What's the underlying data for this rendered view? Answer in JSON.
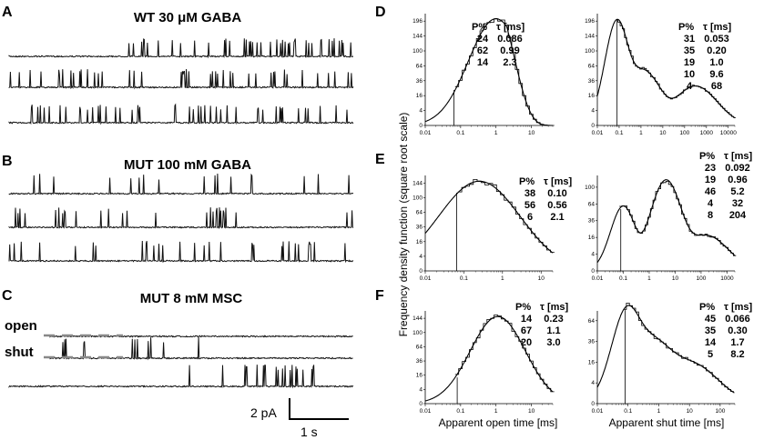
{
  "panels": {
    "A": {
      "label": "A",
      "title": "WT 30 μM GABA"
    },
    "B": {
      "label": "B",
      "title": "MUT 100 mM GABA"
    },
    "C": {
      "label": "C",
      "title": "MUT 8 mM MSC"
    },
    "D": {
      "label": "D"
    },
    "E": {
      "label": "E"
    },
    "F": {
      "label": "F"
    }
  },
  "trace_labels": {
    "open": "open",
    "shut": "shut"
  },
  "scale_bar": {
    "current": "2 pA",
    "time": "1 s"
  },
  "y_axis_label": "Frequency density function (square root scale)",
  "x_axis_labels": {
    "open": "Apparent open time [ms]",
    "shut": "Apparent shut time [ms]"
  },
  "table_headers": {
    "p": "P%",
    "tau": "τ [ms]"
  },
  "chart_data": [
    {
      "id": "D-open",
      "type": "histogram",
      "xlabel": "Apparent open time [ms]",
      "x_ticks": [
        "0.01",
        "0.1",
        "1",
        "10"
      ],
      "xlim": [
        0.01,
        40
      ],
      "y_ticks": [
        "0",
        "4",
        "16",
        "36",
        "64",
        "100",
        "144",
        "196"
      ],
      "ylim": [
        0,
        225
      ],
      "components": [
        {
          "p": "24",
          "tau": "0.086"
        },
        {
          "p": "62",
          "tau": "0.99"
        },
        {
          "p": "14",
          "tau": "2.3"
        }
      ]
    },
    {
      "id": "D-shut",
      "type": "histogram",
      "xlabel": "Apparent shut time [ms]",
      "x_ticks": [
        "0.01",
        "0.1",
        "1",
        "10",
        "100",
        "1000",
        "10000"
      ],
      "xlim": [
        0.01,
        20000
      ],
      "y_ticks": [
        "0",
        "4",
        "16",
        "36",
        "64",
        "100",
        "144",
        "196"
      ],
      "ylim": [
        0,
        225
      ],
      "components": [
        {
          "p": "31",
          "tau": "0.053"
        },
        {
          "p": "35",
          "tau": "0.20"
        },
        {
          "p": "19",
          "tau": "1.0"
        },
        {
          "p": "10",
          "tau": "9.6"
        },
        {
          "p": "4",
          "tau": "68"
        }
      ]
    },
    {
      "id": "E-open",
      "type": "histogram",
      "xlabel": "Apparent open time [ms]",
      "x_ticks": [
        "0.01",
        "0.1",
        "1",
        "10"
      ],
      "xlim": [
        0.01,
        20
      ],
      "y_ticks": [
        "0",
        "4",
        "16",
        "36",
        "64",
        "100",
        "144"
      ],
      "ylim": [
        0,
        170
      ],
      "components": [
        {
          "p": "38",
          "tau": "0.10"
        },
        {
          "p": "56",
          "tau": "0.56"
        },
        {
          "p": "6",
          "tau": "2.1"
        }
      ]
    },
    {
      "id": "E-shut",
      "type": "histogram",
      "xlabel": "Apparent shut time [ms]",
      "x_ticks": [
        "0.01",
        "0.1",
        "1",
        "10",
        "100",
        "1000"
      ],
      "xlim": [
        0.01,
        2000
      ],
      "y_ticks": [
        "0",
        "4",
        "16",
        "36",
        "64",
        "100"
      ],
      "ylim": [
        0,
        130
      ],
      "components": [
        {
          "p": "23",
          "tau": "0.092"
        },
        {
          "p": "19",
          "tau": "0.96"
        },
        {
          "p": "46",
          "tau": "5.2"
        },
        {
          "p": "4",
          "tau": "32"
        },
        {
          "p": "8",
          "tau": "204"
        }
      ]
    },
    {
      "id": "F-open",
      "type": "histogram",
      "xlabel": "Apparent open time [ms]",
      "x_ticks": [
        "0.01",
        "0.1",
        "1",
        "10"
      ],
      "xlim": [
        0.01,
        40
      ],
      "y_ticks": [
        "0",
        "4",
        "16",
        "36",
        "64",
        "100",
        "144"
      ],
      "ylim": [
        0,
        170
      ],
      "components": [
        {
          "p": "14",
          "tau": "0.23"
        },
        {
          "p": "67",
          "tau": "1.1"
        },
        {
          "p": "20",
          "tau": "3.0"
        }
      ]
    },
    {
      "id": "F-shut",
      "type": "histogram",
      "xlabel": "Apparent shut time [ms]",
      "x_ticks": [
        "0.01",
        "0.1",
        "1",
        "10",
        "100"
      ],
      "xlim": [
        0.01,
        300
      ],
      "y_ticks": [
        "0",
        "4",
        "16",
        "36",
        "64"
      ],
      "ylim": [
        0,
        80
      ],
      "components": [
        {
          "p": "45",
          "tau": "0.066"
        },
        {
          "p": "35",
          "tau": "0.30"
        },
        {
          "p": "14",
          "tau": "1.7"
        },
        {
          "p": "5",
          "tau": "8.2"
        }
      ]
    }
  ]
}
